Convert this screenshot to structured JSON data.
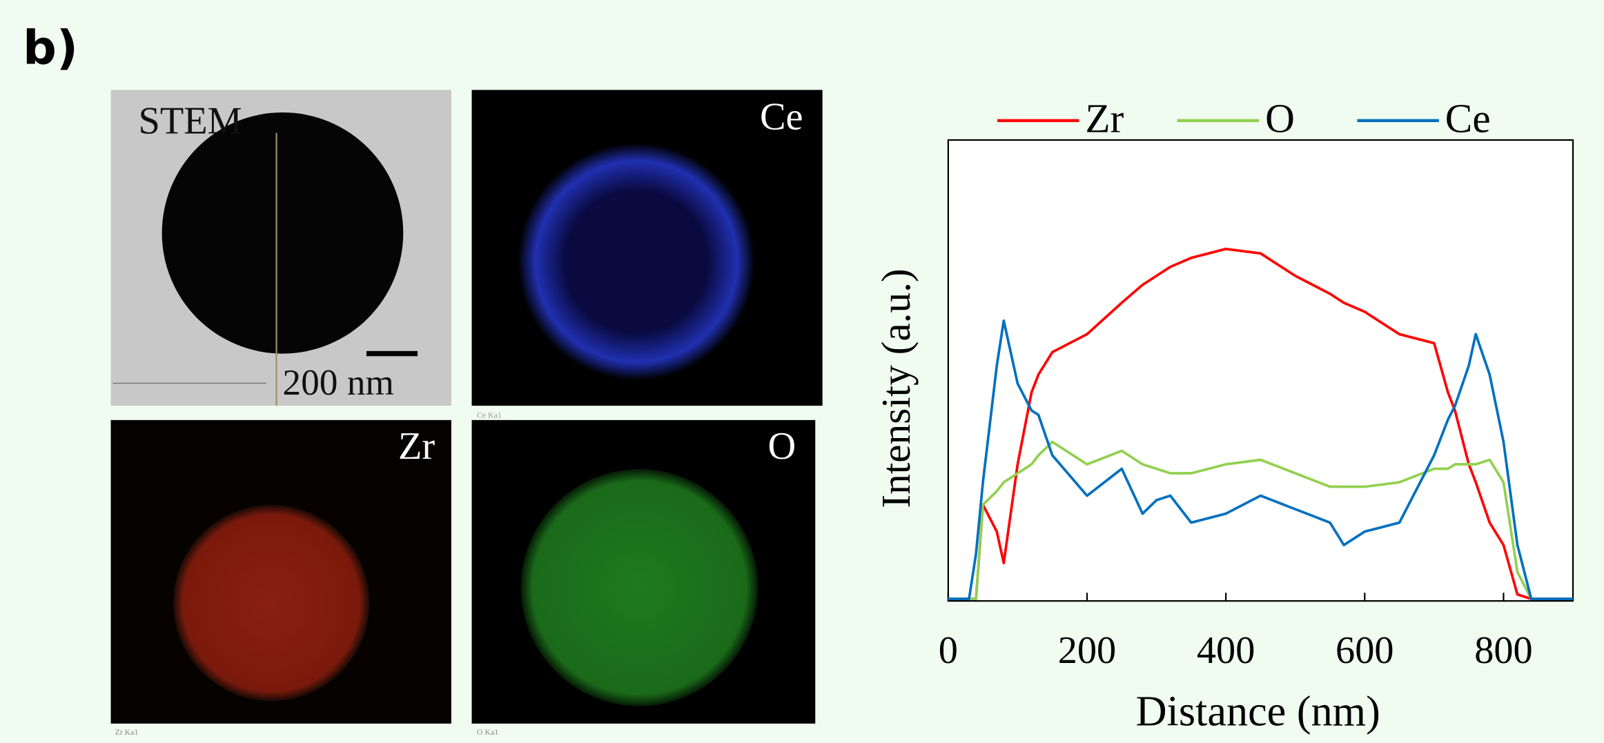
{
  "panel_label": "b)",
  "images": [
    {
      "label": "STEM",
      "scale_bar": "200 nm"
    },
    {
      "label": "Ce",
      "caption": "Ce Ka1"
    },
    {
      "label": "Zr",
      "caption": "Zr Ka1"
    },
    {
      "label": "O",
      "caption": "O Ka1"
    }
  ],
  "chart_data": {
    "type": "line",
    "x_label": "Distance (nm)",
    "y_label": "Intensity (a.u.)",
    "x": [
      0,
      30,
      40,
      50,
      70,
      80,
      100,
      120,
      130,
      150,
      200,
      250,
      280,
      300,
      320,
      350,
      400,
      450,
      500,
      550,
      570,
      600,
      650,
      700,
      720,
      730,
      750,
      760,
      780,
      800,
      820,
      840,
      900
    ],
    "series": [
      {
        "name": "Zr",
        "color": "#ff0000",
        "values": [
          0,
          0,
          0,
          21,
          15,
          8,
          30,
          46,
          50,
          55,
          59,
          66,
          70,
          72,
          74,
          76,
          78,
          77,
          72,
          68,
          66,
          64,
          59,
          57,
          46,
          42,
          30,
          26,
          17,
          12,
          1,
          0,
          0
        ]
      },
      {
        "name": "O",
        "color": "#92d050",
        "values": [
          0,
          0,
          0,
          21,
          24,
          26,
          28,
          30,
          32,
          35,
          30,
          33,
          30,
          29,
          28,
          28,
          30,
          31,
          28,
          25,
          25,
          25,
          26,
          29,
          29,
          30,
          30,
          30,
          31,
          26,
          6,
          0,
          0
        ]
      },
      {
        "name": "Ce",
        "color": "#0070c0",
        "values": [
          0,
          0,
          10,
          26,
          52,
          62,
          48,
          42,
          41,
          32,
          23,
          29,
          19,
          22,
          23,
          17,
          19,
          23,
          20,
          17,
          12,
          15,
          17,
          32,
          40,
          43,
          52,
          59,
          50,
          35,
          12,
          0,
          0
        ]
      }
    ],
    "xlim": [
      0,
      900
    ],
    "xticks": [
      0,
      200,
      400,
      600,
      800
    ],
    "ylim": [
      0,
      100
    ],
    "legend": "top"
  }
}
